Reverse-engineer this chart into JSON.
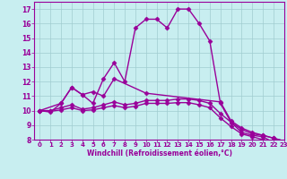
{
  "background_color": "#c8eef0",
  "grid_color": "#a0ccd0",
  "line_color": "#990099",
  "marker_color": "#990099",
  "xlabel": "Windchill (Refroidissement éolien,°C)",
  "xlabel_color": "#990099",
  "tick_color": "#990099",
  "xlim": [
    -0.5,
    23
  ],
  "ylim": [
    8,
    17.5
  ],
  "yticks": [
    8,
    9,
    10,
    11,
    12,
    13,
    14,
    15,
    16,
    17
  ],
  "xticks": [
    0,
    1,
    2,
    3,
    4,
    5,
    6,
    7,
    8,
    9,
    10,
    11,
    12,
    13,
    14,
    15,
    16,
    17,
    18,
    19,
    20,
    21,
    22,
    23
  ],
  "line1_x": [
    0,
    1,
    2,
    3,
    4,
    5,
    6,
    7,
    8,
    9,
    10,
    11,
    12,
    13,
    14,
    15,
    16,
    17,
    18,
    19,
    20,
    21,
    22,
    23
  ],
  "line1_y": [
    10.0,
    9.9,
    10.5,
    11.6,
    11.1,
    10.5,
    12.2,
    13.3,
    12.0,
    15.7,
    16.3,
    16.3,
    15.7,
    17.0,
    17.0,
    16.0,
    14.8,
    10.5,
    9.2,
    8.5,
    8.3,
    8.2,
    7.8,
    7.5
  ],
  "line2_x": [
    0,
    2,
    3,
    4,
    5,
    6,
    7,
    10,
    17,
    18,
    19,
    20,
    21,
    22,
    23
  ],
  "line2_y": [
    10.0,
    10.5,
    11.6,
    11.1,
    11.3,
    11.0,
    12.2,
    11.2,
    10.6,
    9.3,
    8.8,
    8.5,
    8.3,
    8.1,
    7.9
  ],
  "line3_x": [
    0,
    1,
    2,
    3,
    4,
    5,
    6,
    7,
    8,
    9,
    10,
    11,
    12,
    13,
    14,
    15,
    16,
    17,
    18,
    19,
    20,
    21,
    22,
    23
  ],
  "line3_y": [
    10.0,
    10.0,
    10.2,
    10.4,
    10.1,
    10.2,
    10.4,
    10.6,
    10.4,
    10.5,
    10.7,
    10.7,
    10.7,
    10.8,
    10.8,
    10.7,
    10.5,
    9.8,
    9.2,
    8.7,
    8.4,
    8.3,
    8.1,
    7.9
  ],
  "line4_x": [
    0,
    1,
    2,
    3,
    4,
    5,
    6,
    7,
    8,
    9,
    10,
    11,
    12,
    13,
    14,
    15,
    16,
    17,
    18,
    19,
    20,
    21,
    22,
    23
  ],
  "line4_y": [
    10.0,
    9.95,
    10.05,
    10.2,
    10.0,
    10.05,
    10.2,
    10.35,
    10.2,
    10.3,
    10.5,
    10.5,
    10.5,
    10.55,
    10.55,
    10.4,
    10.2,
    9.5,
    8.9,
    8.4,
    8.2,
    8.0,
    7.8,
    7.55
  ],
  "marker": "D",
  "markersize": 2.5,
  "linewidth": 1.0
}
